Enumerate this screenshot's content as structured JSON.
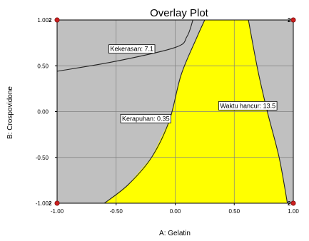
{
  "chart_data": {
    "type": "overlay contour",
    "title": "Overlay Plot",
    "xlabel": "A: Gelatin",
    "ylabel": "B: Crospovidone",
    "xlim": [
      -1,
      1
    ],
    "ylim": [
      -1,
      1
    ],
    "x_tick_labels": [
      "-1.00",
      "-0.50",
      "0.00",
      "0.50",
      "1.00"
    ],
    "y_tick_labels": [
      "1.00",
      "0.50",
      "0.00",
      "-0.50",
      "-1.00"
    ],
    "grid": true,
    "colors": {
      "feasible": "#ffff00",
      "infeasible": "#c0c0c0",
      "design_point": "#cc1f1f"
    },
    "feasible_region": [
      [
        -0.6,
        -1.0
      ],
      [
        -0.4,
        -0.8
      ],
      [
        -0.2,
        -0.5
      ],
      [
        -0.05,
        -0.1
      ],
      [
        0.05,
        0.4
      ],
      [
        0.18,
        0.8
      ],
      [
        0.25,
        1.0
      ],
      [
        0.62,
        1.0
      ],
      [
        0.7,
        0.45
      ],
      [
        0.78,
        0.0
      ],
      [
        0.88,
        -0.5
      ],
      [
        0.95,
        -1.0
      ]
    ],
    "contours": [
      {
        "label": "Kekerasan: 7.1",
        "points": [
          [
            -1.0,
            0.44
          ],
          [
            -0.5,
            0.55
          ],
          [
            0.0,
            0.7
          ],
          [
            0.1,
            0.82
          ],
          [
            0.15,
            1.0
          ]
        ]
      },
      {
        "label": "Kerapuhan: 0.35",
        "points": [
          [
            -0.6,
            -1.0
          ],
          [
            -0.4,
            -0.8
          ],
          [
            -0.2,
            -0.5
          ],
          [
            -0.05,
            -0.1
          ],
          [
            0.05,
            0.4
          ],
          [
            0.18,
            0.8
          ],
          [
            0.25,
            1.0
          ]
        ]
      },
      {
        "label": "Waktu hancur: 13.5",
        "points": [
          [
            0.62,
            1.0
          ],
          [
            0.7,
            0.45
          ],
          [
            0.78,
            0.0
          ],
          [
            0.88,
            -0.5
          ],
          [
            0.95,
            -1.0
          ]
        ]
      }
    ],
    "annotations": [
      {
        "text": "Kekerasan: 7.1",
        "x": -0.55,
        "y": 0.66
      },
      {
        "text": "Kerapuhan: 0.35",
        "x": -0.45,
        "y": -0.1
      },
      {
        "text": "Waktu hancur: 13.5",
        "x": 0.38,
        "y": 0.04
      }
    ],
    "design_points": [
      {
        "x": -1,
        "y": 1,
        "label": "2"
      },
      {
        "x": 1,
        "y": 1,
        "label": "2"
      },
      {
        "x": -1,
        "y": -1,
        "label": "2"
      },
      {
        "x": 1,
        "y": -1,
        "label": "2"
      }
    ]
  }
}
